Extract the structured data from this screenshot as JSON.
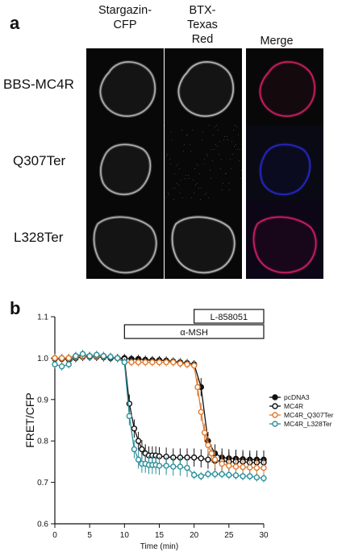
{
  "panel_a": {
    "letter": "a",
    "columns": [
      "Stargazin-\nCFP",
      "BTX-\nTexas\nRed",
      "Merge"
    ],
    "rows": [
      "BBS-MC4R",
      "Q307Ter",
      "L328Ter"
    ],
    "channel_colors": {
      "cfp": "#d8d8d8",
      "texas_red": "#e0e0e0",
      "merge_red": "#e0206a",
      "merge_blue": "#2a2ad8"
    }
  },
  "panel_b": {
    "letter": "b"
  },
  "chart_data": {
    "type": "line",
    "ylabel": "FRET/CFP",
    "xlabel": "Time (min)",
    "xlim": [
      0,
      30
    ],
    "ylim": [
      0.6,
      1.1
    ],
    "xticks": [
      "0",
      "5",
      "10",
      "15",
      "20",
      "25",
      "30"
    ],
    "yticks": [
      "0.6",
      "0.7",
      "0.8",
      "0.9",
      "1.0",
      "1.1"
    ],
    "treatment_bars": [
      {
        "label": "L-858051",
        "start": 20,
        "end": 30
      },
      {
        "label": "α-MSH",
        "start": 10,
        "end": 30
      }
    ],
    "legend_position": "right",
    "series": [
      {
        "name": "pcDNA3",
        "color": "#111111",
        "marker": "filled",
        "x": [
          0,
          1,
          2,
          3,
          4,
          5,
          6,
          7,
          8,
          9,
          10,
          11,
          12,
          13,
          14,
          15,
          16,
          17,
          18,
          19,
          20,
          21,
          22,
          23,
          24,
          25,
          26,
          27,
          28,
          29,
          30
        ],
        "y": [
          1.0,
          1.0,
          1.0,
          1.005,
          1.005,
          1.005,
          1.005,
          1.005,
          1.0,
          1.0,
          1.0,
          0.998,
          0.998,
          0.996,
          0.995,
          0.995,
          0.994,
          0.992,
          0.99,
          0.988,
          0.985,
          0.93,
          0.8,
          0.77,
          0.76,
          0.758,
          0.757,
          0.756,
          0.755,
          0.755,
          0.755
        ]
      },
      {
        "name": "MC4R",
        "color": "#111111",
        "marker": "open",
        "x": [
          0,
          1,
          2,
          3,
          4,
          5,
          6,
          7,
          8,
          9,
          10,
          10.7,
          11.4,
          12,
          12.5,
          13,
          13.5,
          14,
          14.5,
          15,
          16,
          17,
          18,
          19,
          20,
          21,
          22,
          23,
          24,
          25,
          26,
          27,
          28,
          29,
          30
        ],
        "y": [
          0.998,
          0.998,
          0.997,
          1.0,
          1.003,
          1.003,
          1.003,
          1.002,
          1.001,
          1.0,
          0.998,
          0.89,
          0.83,
          0.8,
          0.78,
          0.77,
          0.765,
          0.765,
          0.765,
          0.763,
          0.762,
          0.76,
          0.76,
          0.76,
          0.76,
          0.758,
          0.755,
          0.752,
          0.752,
          0.75,
          0.75,
          0.75,
          0.748,
          0.748,
          0.748
        ]
      },
      {
        "name": "MC4R_Q307Ter",
        "color": "#e07a2e",
        "marker": "open",
        "x": [
          0,
          1,
          2,
          3,
          4,
          5,
          6,
          7,
          8,
          9,
          10,
          11,
          12,
          13,
          14,
          15,
          16,
          17,
          18,
          19,
          20,
          20.5,
          21,
          21.5,
          22,
          22.5,
          23,
          24,
          25,
          26,
          27,
          28,
          29,
          30
        ],
        "y": [
          1.0,
          1.0,
          1.0,
          1.003,
          1.005,
          1.005,
          1.005,
          1.004,
          1.003,
          1.0,
          0.99,
          0.99,
          0.99,
          0.99,
          0.99,
          0.99,
          0.99,
          0.99,
          0.987,
          0.985,
          0.982,
          0.93,
          0.87,
          0.82,
          0.79,
          0.77,
          0.755,
          0.745,
          0.74,
          0.738,
          0.737,
          0.736,
          0.735,
          0.735
        ]
      },
      {
        "name": "MC4R_L328Ter",
        "color": "#2a8f9a",
        "marker": "open",
        "x": [
          0,
          1,
          2,
          3,
          4,
          5,
          6,
          7,
          8,
          9,
          10,
          10.7,
          11.4,
          12,
          12.5,
          13,
          13.5,
          14,
          14.5,
          15,
          16,
          17,
          18,
          19,
          20,
          21,
          22,
          23,
          24,
          25,
          26,
          27,
          28,
          29,
          30
        ],
        "y": [
          0.985,
          0.98,
          0.985,
          1.005,
          1.01,
          1.005,
          1.008,
          1.005,
          1.003,
          1.0,
          0.99,
          0.86,
          0.78,
          0.755,
          0.745,
          0.745,
          0.742,
          0.742,
          0.742,
          0.74,
          0.74,
          0.738,
          0.738,
          0.735,
          0.718,
          0.715,
          0.72,
          0.72,
          0.72,
          0.718,
          0.717,
          0.715,
          0.715,
          0.712,
          0.71
        ]
      }
    ]
  }
}
